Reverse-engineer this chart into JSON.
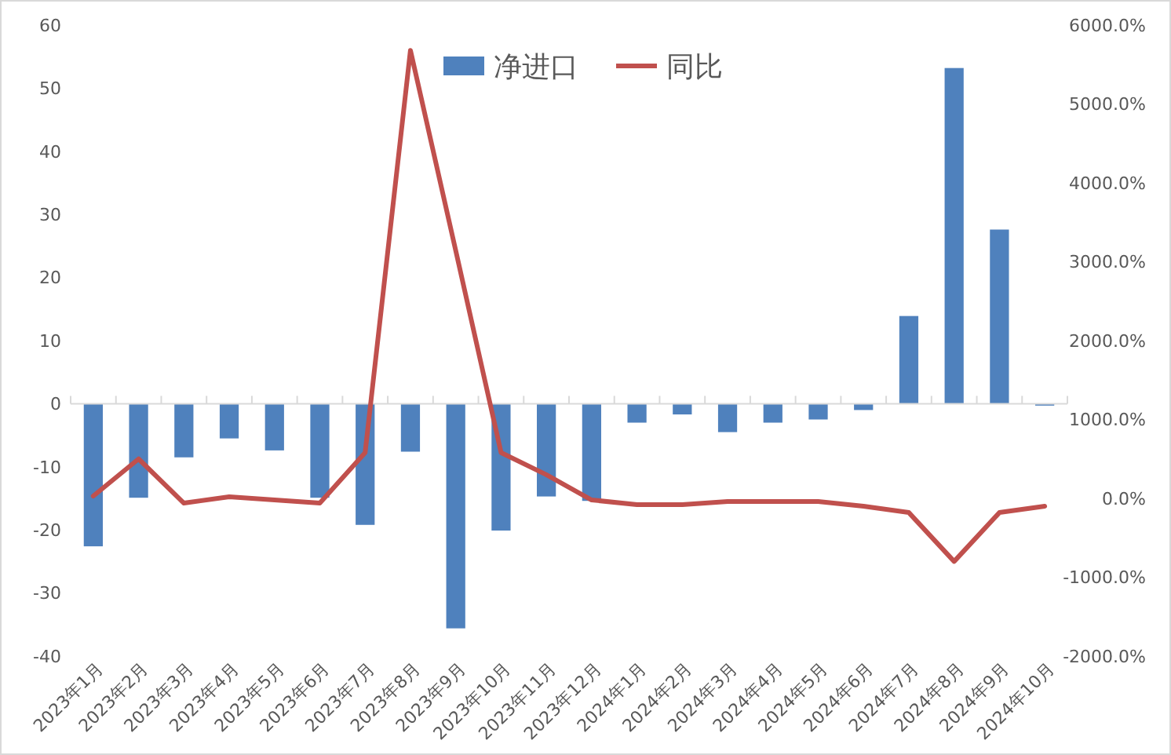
{
  "chart_data": {
    "type": "bar",
    "categories": [
      "2023年1月",
      "2023年2月",
      "2023年3月",
      "2023年4月",
      "2023年5月",
      "2023年6月",
      "2023年7月",
      "2023年8月",
      "2023年9月",
      "2023年10月",
      "2023年11月",
      "2023年12月",
      "2024年1月",
      "2024年2月",
      "2024年3月",
      "2024年4月",
      "2024年5月",
      "2024年6月",
      "2024年7月",
      "2024年8月",
      "2024年9月",
      "2024年10月"
    ],
    "series": [
      {
        "name": "净进口",
        "color": "#4f81bd",
        "values": [
          -22.6,
          -14.9,
          -8.5,
          -5.5,
          -7.4,
          -14.9,
          -19.2,
          -7.6,
          -35.6,
          -20.1,
          -14.7,
          -15.4,
          -3.0,
          -1.7,
          -4.5,
          -3.0,
          -2.5,
          -1.0,
          13.9,
          53.2,
          27.6,
          -0.3
        ]
      },
      {
        "name": "同比",
        "type": "line",
        "axis": "y2",
        "color": "#c0504d",
        "values": [
          30,
          500,
          -60,
          20,
          -20,
          -60,
          580,
          5680,
          3140,
          580,
          300,
          -20,
          -80,
          -80,
          -40,
          -40,
          -40,
          -100,
          -180,
          -800,
          -180,
          -100
        ]
      }
    ],
    "ylim": [
      -40,
      60
    ],
    "yticks": [
      -40,
      -30,
      -20,
      -10,
      0,
      10,
      20,
      30,
      40,
      50,
      60
    ],
    "y2lim": [
      -2000,
      6000
    ],
    "y2ticks": [
      {
        "value": -2000,
        "label": "-2000.0%"
      },
      {
        "value": -1000,
        "label": "-1000.0%"
      },
      {
        "value": 0,
        "label": "0.0%"
      },
      {
        "value": 1000,
        "label": "1000.0%"
      },
      {
        "value": 2000,
        "label": "2000.0%"
      },
      {
        "value": 3000,
        "label": "3000.0%"
      },
      {
        "value": 4000,
        "label": "4000.0%"
      },
      {
        "value": 5000,
        "label": "5000.0%"
      },
      {
        "value": 6000,
        "label": "6000.0%"
      }
    ],
    "legend": "top",
    "marker": "none",
    "line_style": "solid"
  }
}
